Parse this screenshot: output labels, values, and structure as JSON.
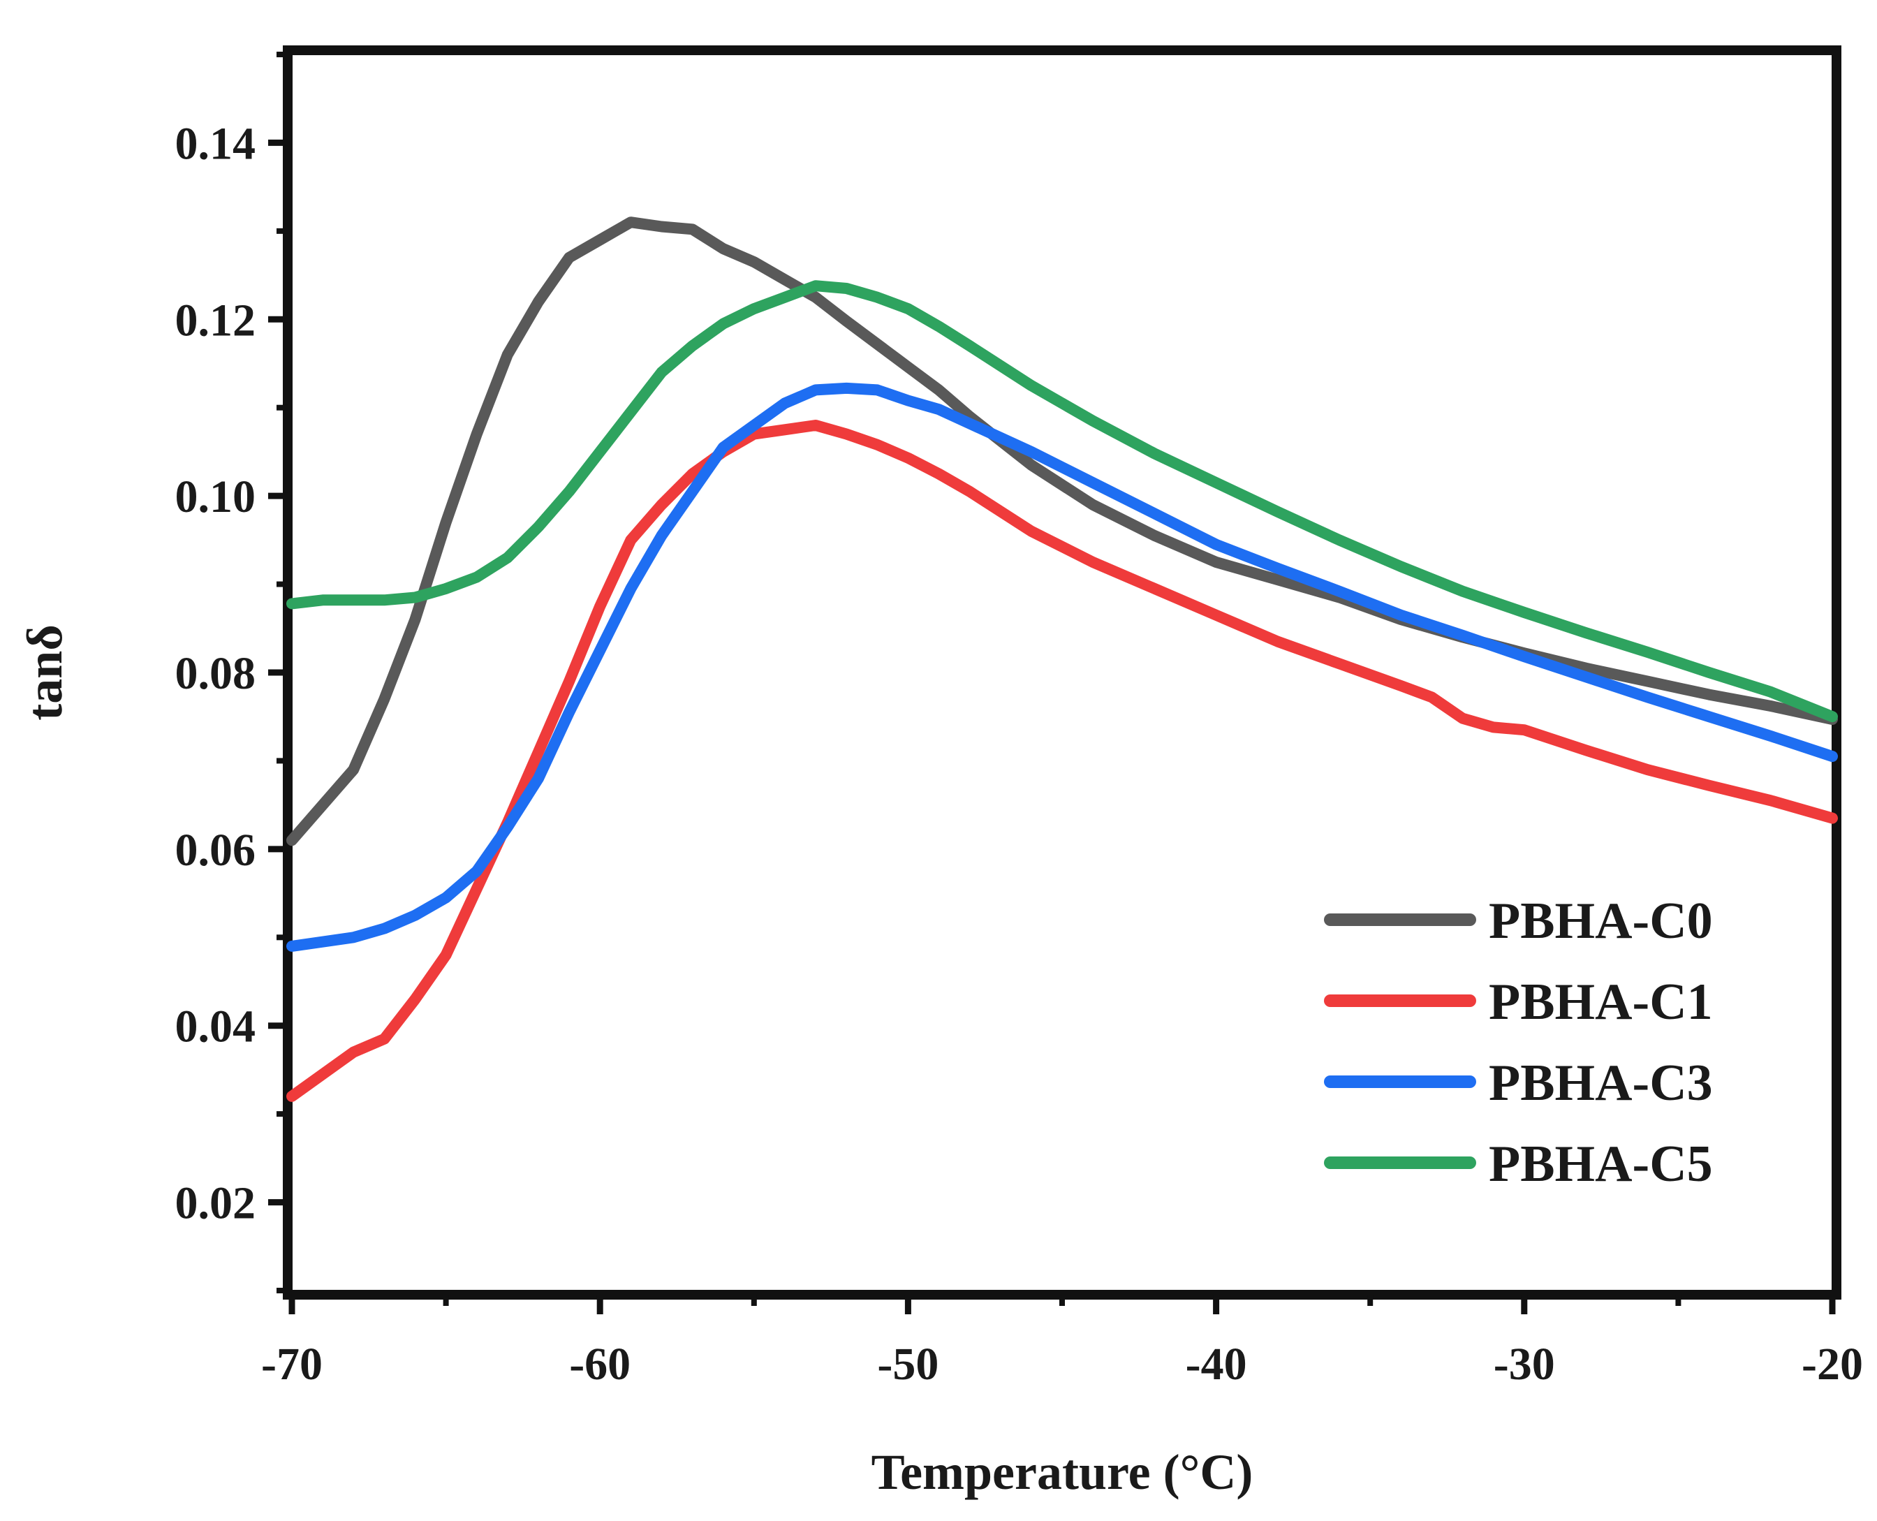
{
  "chart_data": {
    "type": "line",
    "title": "",
    "xlabel": "Temperature (°C)",
    "ylabel": "tanδ",
    "xlim": [
      -70,
      -20
    ],
    "ylim": [
      0.01,
      0.15
    ],
    "xticks": [
      -70,
      -60,
      -50,
      -40,
      -30,
      -20
    ],
    "xtick_labels": [
      "-70",
      "-60",
      "-50",
      "-40",
      "-30",
      "-20"
    ],
    "yticks": [
      0.02,
      0.04,
      0.06,
      0.08,
      0.1,
      0.12,
      0.14
    ],
    "ytick_labels": [
      "0.02",
      "0.04",
      "0.06",
      "0.08",
      "0.10",
      "0.12",
      "0.14"
    ],
    "grid": false,
    "legend_position": "bottom-right",
    "series": [
      {
        "name": "PBHA-C0",
        "color": "#595959",
        "x": [
          -70,
          -68,
          -67,
          -66,
          -65,
          -64,
          -63,
          -62,
          -61,
          -60,
          -59,
          -58,
          -57,
          -56,
          -55,
          -54,
          -53,
          -52,
          -51,
          -50,
          -49,
          -48,
          -46,
          -44,
          -42,
          -40,
          -38,
          -36,
          -34,
          -32,
          -30,
          -28,
          -26,
          -24,
          -22,
          -20
        ],
        "y": [
          0.061,
          0.069,
          0.077,
          0.086,
          0.097,
          0.107,
          0.116,
          0.122,
          0.127,
          0.129,
          0.131,
          0.1305,
          0.1302,
          0.128,
          0.1265,
          0.1245,
          0.1225,
          0.1198,
          0.1172,
          0.1146,
          0.112,
          0.109,
          0.1035,
          0.099,
          0.0955,
          0.0925,
          0.0905,
          0.0885,
          0.086,
          0.084,
          0.0822,
          0.0805,
          0.079,
          0.0775,
          0.0762,
          0.0747
        ]
      },
      {
        "name": "PBHA-C1",
        "color": "#ef3b3b",
        "x": [
          -70,
          -68,
          -67,
          -66,
          -65,
          -64,
          -63,
          -62,
          -61,
          -60,
          -59,
          -58,
          -57,
          -56,
          -55,
          -54,
          -53,
          -52,
          -51,
          -50,
          -49,
          -48,
          -46,
          -44,
          -42,
          -40,
          -38,
          -36,
          -34,
          -33,
          -32,
          -31,
          -30,
          -28,
          -26,
          -24,
          -22,
          -20
        ],
        "y": [
          0.032,
          0.037,
          0.0385,
          0.043,
          0.048,
          0.0555,
          0.063,
          0.071,
          0.079,
          0.0875,
          0.095,
          0.099,
          0.1025,
          0.105,
          0.107,
          0.1075,
          0.108,
          0.107,
          0.1058,
          0.1043,
          0.1025,
          0.1005,
          0.096,
          0.0925,
          0.0895,
          0.0865,
          0.0835,
          0.081,
          0.0785,
          0.0772,
          0.0748,
          0.0738,
          0.0735,
          0.0712,
          0.069,
          0.0672,
          0.0655,
          0.0635
        ]
      },
      {
        "name": "PBHA-C3",
        "color": "#1e6ef2",
        "x": [
          -70,
          -68,
          -67,
          -66,
          -65,
          -64,
          -63,
          -62,
          -61,
          -60,
          -59,
          -58,
          -57,
          -56,
          -55,
          -54,
          -53,
          -52,
          -51,
          -50,
          -49,
          -48,
          -46,
          -44,
          -42,
          -40,
          -38,
          -36,
          -34,
          -32,
          -30,
          -28,
          -26,
          -24,
          -22,
          -20
        ],
        "y": [
          0.049,
          0.05,
          0.051,
          0.0525,
          0.0545,
          0.0575,
          0.0625,
          0.068,
          0.0755,
          0.0825,
          0.0895,
          0.0955,
          0.1005,
          0.1055,
          0.108,
          0.1105,
          0.112,
          0.1122,
          0.112,
          0.1108,
          0.1098,
          0.1082,
          0.105,
          0.1015,
          0.098,
          0.0945,
          0.0918,
          0.0892,
          0.0865,
          0.0842,
          0.0818,
          0.0795,
          0.0772,
          0.075,
          0.0728,
          0.0705
        ]
      },
      {
        "name": "PBHA-C5",
        "color": "#2ea35f",
        "x": [
          -70,
          -69,
          -68,
          -67,
          -66,
          -65,
          -64,
          -63,
          -62,
          -61,
          -60,
          -59,
          -58,
          -57,
          -56,
          -55,
          -54,
          -53,
          -52,
          -51,
          -50,
          -49,
          -48,
          -46,
          -44,
          -42,
          -40,
          -38,
          -36,
          -34,
          -32,
          -30,
          -28,
          -26,
          -24,
          -22,
          -20
        ],
        "y": [
          0.0878,
          0.0882,
          0.0882,
          0.0882,
          0.0885,
          0.0895,
          0.0908,
          0.093,
          0.0965,
          0.1005,
          0.105,
          0.1095,
          0.114,
          0.117,
          0.1195,
          0.1212,
          0.1225,
          0.1238,
          0.1235,
          0.1225,
          0.1212,
          0.1192,
          0.117,
          0.1125,
          0.1085,
          0.1048,
          0.1015,
          0.0982,
          0.095,
          0.092,
          0.0892,
          0.0868,
          0.0845,
          0.0823,
          0.08,
          0.0778,
          0.075
        ]
      }
    ]
  }
}
